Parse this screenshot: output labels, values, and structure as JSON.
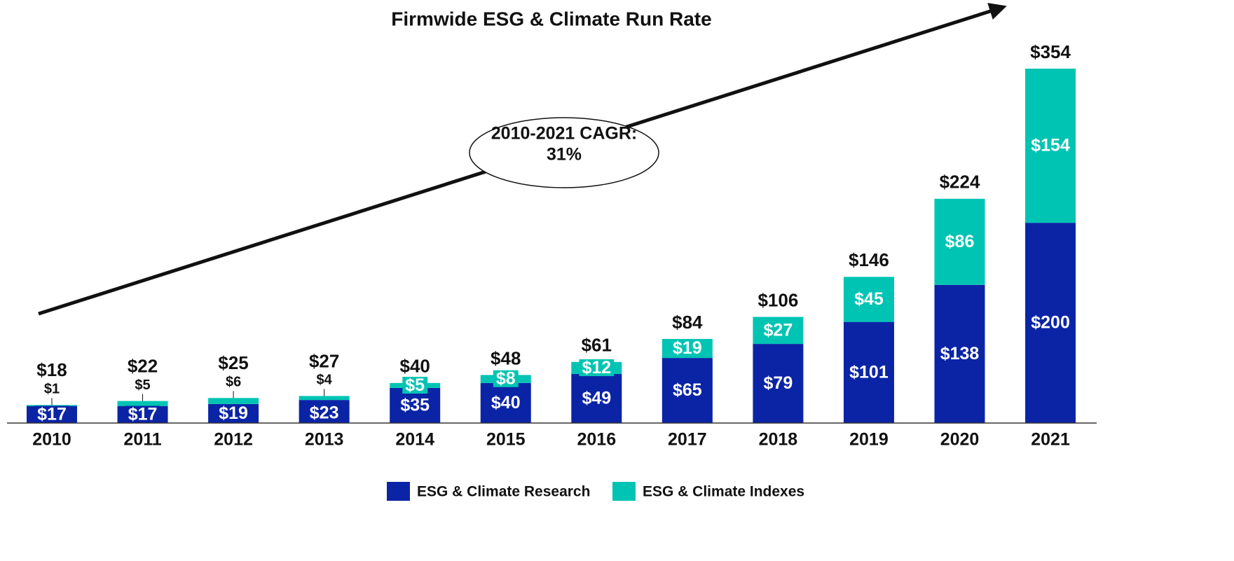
{
  "chart_data": {
    "type": "stacked-bar",
    "title": "Firmwide ESG & Climate Run Rate",
    "annotation": [
      "2010-2021 CAGR:",
      "31%"
    ],
    "categories": [
      "2010",
      "2011",
      "2012",
      "2013",
      "2014",
      "2015",
      "2016",
      "2017",
      "2018",
      "2019",
      "2020",
      "2021"
    ],
    "series": [
      {
        "name": "ESG & Climate Research",
        "color": "#0b24a6",
        "values": [
          17,
          17,
          19,
          23,
          35,
          40,
          49,
          65,
          79,
          101,
          138,
          200
        ],
        "value_labels": [
          "$17",
          "$17",
          "$19",
          "$23",
          "$35",
          "$40",
          "$49",
          "$65",
          "$79",
          "$101",
          "$138",
          "$200"
        ]
      },
      {
        "name": "ESG & Climate Indexes",
        "color": "#00c4b3",
        "values": [
          1,
          5,
          6,
          4,
          5,
          8,
          12,
          19,
          27,
          45,
          86,
          154
        ],
        "value_labels": [
          "$1",
          "$5",
          "$6",
          "$4",
          "$5",
          "$8",
          "$12",
          "$19",
          "$27",
          "$45",
          "$86",
          "$154"
        ]
      }
    ],
    "totals": [
      18,
      22,
      25,
      27,
      40,
      48,
      61,
      84,
      106,
      146,
      224,
      354
    ],
    "total_labels": [
      "$18",
      "$22",
      "$25",
      "$27",
      "$40",
      "$48",
      "$61",
      "$84",
      "$106",
      "$146",
      "$224",
      "$354"
    ],
    "ylim": [
      0,
      354
    ]
  }
}
